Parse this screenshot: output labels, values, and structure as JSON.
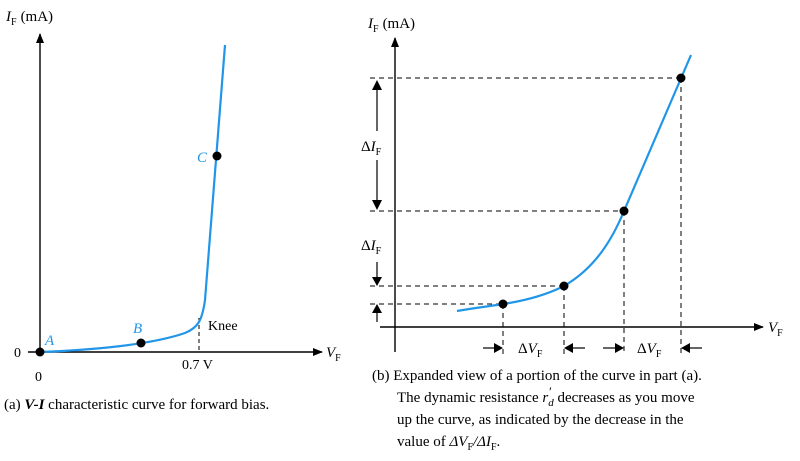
{
  "colors": {
    "curve": "#2196e8",
    "point_label": "#2196e8",
    "axis": "#000000",
    "dashed": "#000000"
  },
  "panel_a": {
    "y_axis_label_symbol": "I",
    "y_axis_label_sub": "F",
    "y_axis_label_unit": "(mA)",
    "x_axis_label_symbol": "V",
    "x_axis_label_sub": "F",
    "origin_x_label": "0",
    "origin_y_label": "0",
    "knee_voltage_label": "0.7 V",
    "knee_label": "Knee",
    "point_a": "A",
    "point_b": "B",
    "point_c": "C",
    "caption_prefix": "(a) ",
    "caption_vi": "V-I",
    "caption_rest": " characteristic curve for forward bias."
  },
  "panel_b": {
    "y_axis_label_symbol": "I",
    "y_axis_label_sub": "F",
    "y_axis_label_unit": "(mA)",
    "x_axis_label_symbol": "V",
    "x_axis_label_sub": "F",
    "delta_symbol": "Δ",
    "delta_i_symbol": "I",
    "delta_i_sub": "F",
    "delta_v_symbol": "V",
    "delta_v_sub": "F",
    "caption_line1": "(b) Expanded view of a portion of the curve in part (a).",
    "caption_line2_pre": "The dynamic resistance ",
    "caption_line2_sym": "r",
    "caption_line2_sym_sub": "d",
    "caption_line2_prime": "′",
    "caption_line2_post": " decreases as you move",
    "caption_line3": "up the curve, as indicated by the decrease in the",
    "caption_line4_pre": "value of ",
    "caption_line4_expr": "ΔV",
    "caption_line4_sub1": "F",
    "caption_line4_slash": "/ΔI",
    "caption_line4_sub2": "F",
    "caption_line4_end": "."
  }
}
